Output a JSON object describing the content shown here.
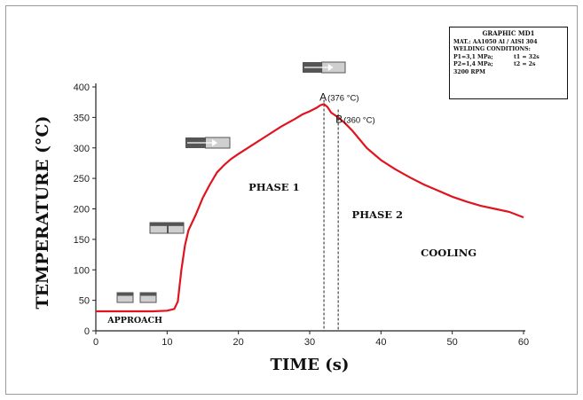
{
  "chart_data": {
    "type": "line",
    "xlabel": "TIME (s)",
    "ylabel": "TEMPERATURE (°C)",
    "xlim": [
      0,
      60
    ],
    "ylim": [
      0,
      400
    ],
    "xticks": [
      0,
      10,
      20,
      30,
      40,
      50,
      60
    ],
    "yticks": [
      0,
      50,
      100,
      150,
      200,
      250,
      300,
      350,
      400
    ],
    "series": [
      {
        "color": "#e0141e",
        "x": [
          0,
          2,
          4,
          6,
          8,
          10,
          11,
          11.5,
          12,
          12.5,
          13,
          14,
          15,
          16,
          17,
          18,
          19,
          20,
          22,
          24,
          26,
          28,
          29,
          30,
          31,
          31.5,
          32,
          32.5,
          33,
          34,
          35,
          36,
          38,
          40,
          42,
          44,
          46,
          48,
          50,
          52,
          54,
          56,
          58,
          60
        ],
        "y": [
          32,
          32,
          32,
          32,
          32,
          33,
          36,
          48,
          100,
          140,
          165,
          190,
          218,
          240,
          260,
          272,
          282,
          290,
          305,
          320,
          335,
          348,
          355,
          360,
          366,
          370,
          372,
          367,
          358,
          350,
          340,
          328,
          300,
          280,
          265,
          252,
          240,
          230,
          220,
          212,
          205,
          200,
          195,
          186
        ]
      }
    ],
    "points": [
      {
        "letter": "A",
        "label": "(376 °C)",
        "x": 32,
        "y": 376
      },
      {
        "letter": "B",
        "label": "(360 °C)",
        "x": 34,
        "y": 360
      }
    ],
    "annotations": {
      "approach": "APPROACH",
      "phase1": "PHASE 1",
      "phase2": "PHASE 2",
      "cooling": "COOLING"
    }
  },
  "infobox": {
    "title": "GRAPHIC MD1",
    "mat": "MAT.: AA1050 Al / AISI 304",
    "welding": "WELDING CONDITIONS:",
    "p1": "P1=3,1 MPa;",
    "t1": "t1 = 32s",
    "p2": "P2=1,4 MPa;",
    "t2": "t2 = 2s",
    "rpm": "3200 RPM"
  },
  "colors": {
    "curve": "#e0141e",
    "axis": "#222222",
    "icon_dark": "#555555",
    "icon_light": "#cfcfcf"
  }
}
